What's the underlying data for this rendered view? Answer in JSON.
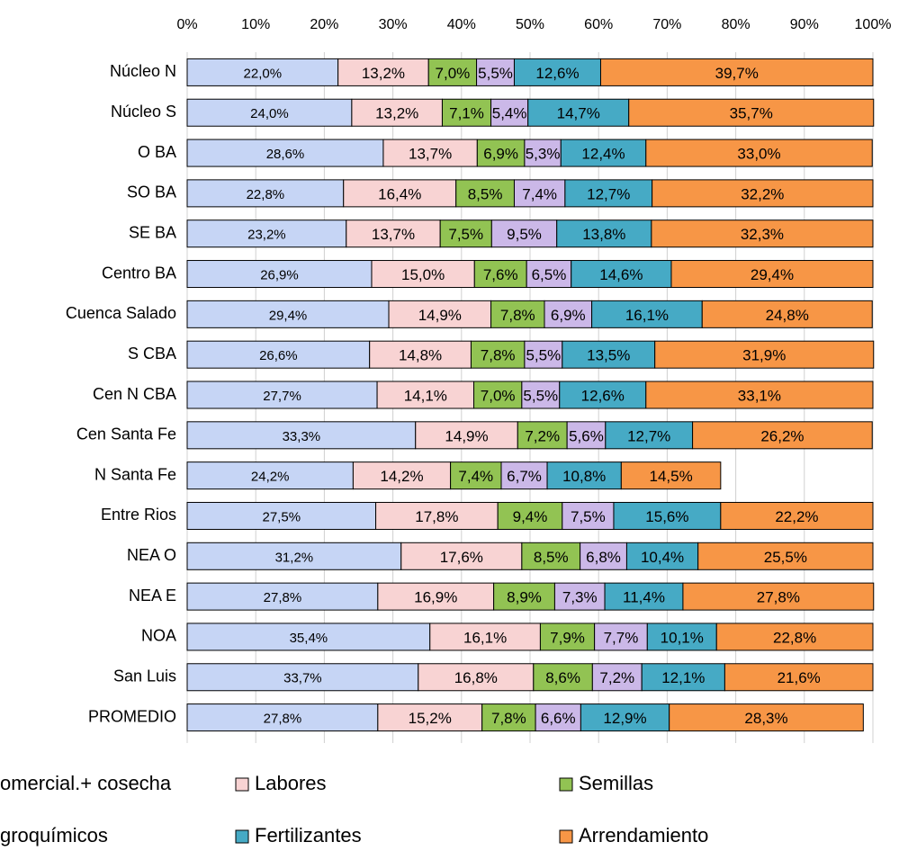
{
  "chart_data": {
    "type": "stacked_barh",
    "categories": [
      "Núcleo N",
      "Núcleo S",
      "O BA",
      "SO BA",
      "SE BA",
      "Centro BA",
      "Cuenca Salado",
      "S CBA",
      "Cen N CBA",
      "Cen Santa Fe",
      "N Santa Fe",
      "Entre Rios",
      "NEA O",
      "NEA E",
      "NOA",
      "San Luis",
      "PROMEDIO"
    ],
    "series": [
      {
        "name": "omercial.+ cosecha",
        "color": "#c6d5f5",
        "values": [
          22.0,
          24.0,
          28.6,
          22.8,
          23.2,
          26.9,
          29.4,
          26.6,
          27.7,
          33.3,
          24.2,
          27.5,
          31.2,
          27.8,
          35.4,
          33.7,
          27.8
        ],
        "value_labels": [
          "22,0%",
          "24,0%",
          "28,6%",
          "22,8%",
          "23,2%",
          "26,9%",
          "29,4%",
          "26,6%",
          "27,7%",
          "33,3%",
          "24,2%",
          "27,5%",
          "31,2%",
          "27,8%",
          "35,4%",
          "33,7%",
          "27,8%"
        ]
      },
      {
        "name": "Labores",
        "color": "#f8d3d3",
        "values": [
          13.2,
          13.2,
          13.7,
          16.4,
          13.7,
          15.0,
          14.9,
          14.8,
          14.1,
          14.9,
          14.2,
          17.8,
          17.6,
          16.9,
          16.1,
          16.8,
          15.2
        ],
        "value_labels": [
          "13,2%",
          "13,2%",
          "13,7%",
          "16,4%",
          "13,7%",
          "15,0%",
          "14,9%",
          "14,8%",
          "14,1%",
          "14,9%",
          "14,2%",
          "17,8%",
          "17,6%",
          "16,9%",
          "16,1%",
          "16,8%",
          "15,2%"
        ]
      },
      {
        "name": "Semillas",
        "color": "#92c353",
        "values": [
          7.0,
          7.1,
          6.9,
          8.5,
          7.5,
          7.6,
          7.8,
          7.8,
          7.0,
          7.2,
          7.4,
          9.4,
          8.5,
          8.9,
          7.9,
          8.6,
          7.8
        ],
        "value_labels": [
          "7,0%",
          "7,1%",
          "6,9%",
          "8,5%",
          "7,5%",
          "7,6%",
          "7,8%",
          "7,8%",
          "7,0%",
          "7,2%",
          "7,4%",
          "9,4%",
          "8,5%",
          "8,9%",
          "7,9%",
          "8,6%",
          "7,8%"
        ]
      },
      {
        "name": "groquímicos",
        "color": "#cbb8e8",
        "values": [
          5.5,
          5.4,
          5.3,
          7.4,
          9.5,
          6.5,
          6.9,
          5.5,
          5.5,
          5.6,
          6.7,
          7.5,
          6.8,
          7.3,
          7.7,
          7.2,
          6.6
        ],
        "value_labels": [
          "5,5%",
          "5,4%",
          "5,3%",
          "7,4%",
          "9,5%",
          "6,5%",
          "6,9%",
          "5,5%",
          "5,5%",
          "5,6%",
          "6,7%",
          "7,5%",
          "6,8%",
          "7,3%",
          "7,7%",
          "7,2%",
          "6,6%"
        ]
      },
      {
        "name": "Fertilizantes",
        "color": "#46aac5",
        "values": [
          12.6,
          14.7,
          12.4,
          12.7,
          13.8,
          14.6,
          16.1,
          13.5,
          12.6,
          12.7,
          10.8,
          15.6,
          10.4,
          11.4,
          10.1,
          12.1,
          12.9
        ],
        "value_labels": [
          "12,6%",
          "14,7%",
          "12,4%",
          "12,7%",
          "13,8%",
          "14,6%",
          "16,1%",
          "13,5%",
          "12,6%",
          "12,7%",
          "10,8%",
          "15,6%",
          "10,4%",
          "11,4%",
          "10,1%",
          "12,1%",
          "12,9%"
        ]
      },
      {
        "name": "Arrendamiento",
        "color": "#f79646",
        "values": [
          39.7,
          35.7,
          33.0,
          32.2,
          32.3,
          29.4,
          24.8,
          31.9,
          33.1,
          26.2,
          14.5,
          22.2,
          25.5,
          27.8,
          22.8,
          21.6,
          28.3
        ],
        "value_labels": [
          "39,7%",
          "35,7%",
          "33,0%",
          "32,2%",
          "32,3%",
          "29,4%",
          "24,8%",
          "31,9%",
          "33,1%",
          "26,2%",
          "14,5%",
          "22,2%",
          "25,5%",
          "27,8%",
          "22,8%",
          "21,6%",
          "28,3%"
        ]
      }
    ],
    "xlim": [
      0,
      100
    ],
    "xticks": [
      {
        "value": 0,
        "label": "0%"
      },
      {
        "value": 10,
        "label": "10%"
      },
      {
        "value": 20,
        "label": "20%"
      },
      {
        "value": 30,
        "label": "30%"
      },
      {
        "value": 40,
        "label": "40%"
      },
      {
        "value": 50,
        "label": "50%"
      },
      {
        "value": 60,
        "label": "60%"
      },
      {
        "value": 70,
        "label": "70%"
      },
      {
        "value": 80,
        "label": "80%"
      },
      {
        "value": 90,
        "label": "90%"
      },
      {
        "value": 100,
        "label": "100%"
      }
    ],
    "grid": true,
    "legend": "bottom"
  }
}
